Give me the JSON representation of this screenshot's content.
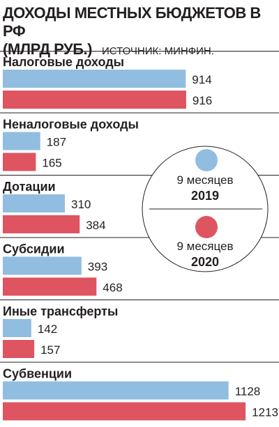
{
  "header": {
    "title_line1": "ДОХОДЫ МЕСТНЫХ БЮДЖЕТОВ В РФ",
    "title_line2": "(МЛРД РУБ.)",
    "source": "ИСТОЧНИК: МИНФИН."
  },
  "colors": {
    "series_2019": "#91bde0",
    "series_2020": "#de5461",
    "divider": "#231f20"
  },
  "legend": {
    "items": [
      {
        "period": "9 месяцев",
        "year": "2019"
      },
      {
        "period": "9 месяцев",
        "year": "2020"
      }
    ]
  },
  "chart_data": {
    "type": "bar",
    "orientation": "horizontal",
    "title": "ДОХОДЫ МЕСТНЫХ БЮДЖЕТОВ В РФ (МЛРД РУБ.)",
    "source": "ИСТОЧНИК: МИНФИН.",
    "categories": [
      "Налоговые доходы",
      "Неналоговые доходы",
      "Дотации",
      "Субсидии",
      "Иные трансферты",
      "Субвенции"
    ],
    "series": [
      {
        "name": "9 месяцев 2019",
        "values": [
          914,
          187,
          310,
          393,
          142,
          1128
        ]
      },
      {
        "name": "9 месяцев 2020",
        "values": [
          916,
          165,
          384,
          468,
          157,
          1213
        ]
      }
    ],
    "grid": false,
    "legend_position": "right"
  }
}
